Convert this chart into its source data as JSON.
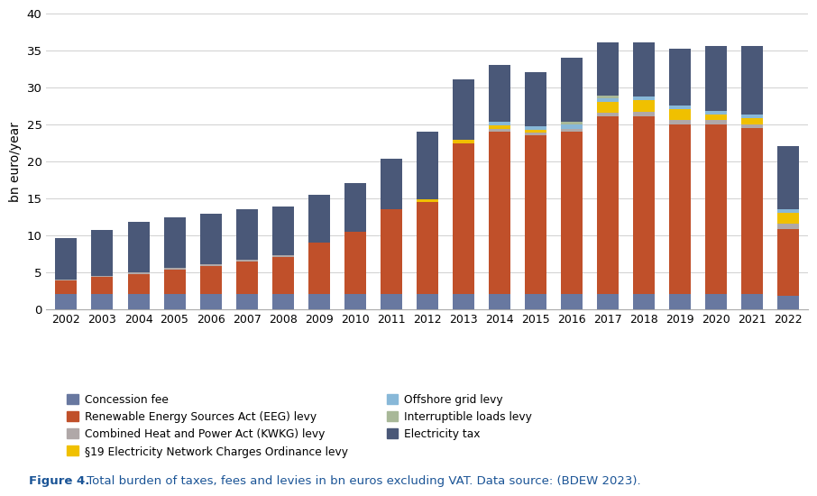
{
  "years": [
    2002,
    2003,
    2004,
    2005,
    2006,
    2007,
    2008,
    2009,
    2010,
    2011,
    2012,
    2013,
    2014,
    2015,
    2016,
    2017,
    2018,
    2019,
    2020,
    2021,
    2022
  ],
  "concession_fee": [
    2.0,
    2.0,
    2.0,
    2.0,
    2.0,
    2.0,
    2.0,
    2.0,
    2.0,
    2.0,
    2.0,
    2.0,
    2.0,
    2.0,
    2.0,
    2.0,
    2.0,
    2.0,
    2.0,
    2.0,
    1.8
  ],
  "eeg_levy": [
    1.8,
    2.3,
    2.7,
    3.3,
    3.8,
    4.4,
    5.0,
    7.0,
    8.5,
    11.5,
    12.5,
    20.4,
    22.0,
    21.5,
    22.0,
    24.0,
    24.0,
    23.0,
    23.0,
    22.5,
    9.0
  ],
  "kwkg_levy": [
    0.2,
    0.2,
    0.3,
    0.3,
    0.3,
    0.3,
    0.3,
    0.0,
    0.0,
    0.0,
    0.0,
    0.0,
    0.3,
    0.4,
    0.4,
    0.5,
    0.7,
    0.5,
    0.5,
    0.5,
    0.7
  ],
  "s19_levy": [
    0.0,
    0.0,
    0.0,
    0.0,
    0.0,
    0.0,
    0.0,
    0.0,
    0.0,
    0.0,
    0.3,
    0.5,
    0.5,
    0.3,
    0.0,
    1.5,
    1.5,
    1.5,
    0.8,
    0.8,
    1.5
  ],
  "offshore_levy": [
    0.0,
    0.0,
    0.0,
    0.0,
    0.0,
    0.0,
    0.0,
    0.0,
    0.0,
    0.0,
    0.0,
    0.0,
    0.5,
    0.5,
    0.5,
    0.5,
    0.5,
    0.5,
    0.5,
    0.5,
    0.5
  ],
  "interruptible_levy": [
    0.0,
    0.0,
    0.0,
    0.0,
    0.0,
    0.0,
    0.0,
    0.0,
    0.0,
    0.0,
    0.0,
    0.0,
    0.0,
    0.0,
    0.4,
    0.4,
    0.0,
    0.0,
    0.0,
    0.0,
    0.0
  ],
  "electricity_tax": [
    5.3,
    6.0,
    6.5,
    6.5,
    6.5,
    6.5,
    6.5,
    6.5,
    6.5,
    6.5,
    9.0,
    8.0,
    7.3,
    7.3,
    8.5,
    7.5,
    7.5,
    7.5,
    8.5,
    8.5,
    8.2
  ],
  "totals": [
    9.6,
    10.7,
    11.8,
    12.4,
    12.9,
    13.5,
    13.9,
    15.5,
    17.0,
    20.3,
    24.0,
    31.0,
    33.0,
    32.0,
    34.0,
    36.0,
    36.0,
    35.2,
    35.5,
    35.5,
    22.0
  ],
  "colors": {
    "concession_fee": "#6878a0",
    "eeg_levy": "#c0502a",
    "kwkg_levy": "#b0a8a8",
    "s19_levy": "#f0c000",
    "offshore_levy": "#88b8d8",
    "interruptible_levy": "#a8b898",
    "electricity_tax": "#4a5878"
  },
  "legend_labels": {
    "concession_fee": "Concession fee",
    "eeg_levy": "Renewable Energy Sources Act (EEG) levy",
    "kwkg_levy": "Combined Heat and Power Act (KWKG) levy",
    "s19_levy": "§19 Electricity Network Charges Ordinance levy",
    "offshore_levy": "Offshore grid levy",
    "interruptible_levy": "Interruptible loads levy",
    "electricity_tax": "Electricity tax"
  },
  "ylabel": "bn euro/year",
  "ylim": [
    0,
    40
  ],
  "yticks": [
    0,
    5,
    10,
    15,
    20,
    25,
    30,
    35,
    40
  ],
  "caption_bold": "Figure 4.",
  "caption_normal": " Total burden of taxes, fees and levies in bn euros excluding VAT. Data source: (BDEW 2023).",
  "caption_color_bold": "#1a5496",
  "caption_color_normal": "#1a5496",
  "background_color": "#ffffff"
}
